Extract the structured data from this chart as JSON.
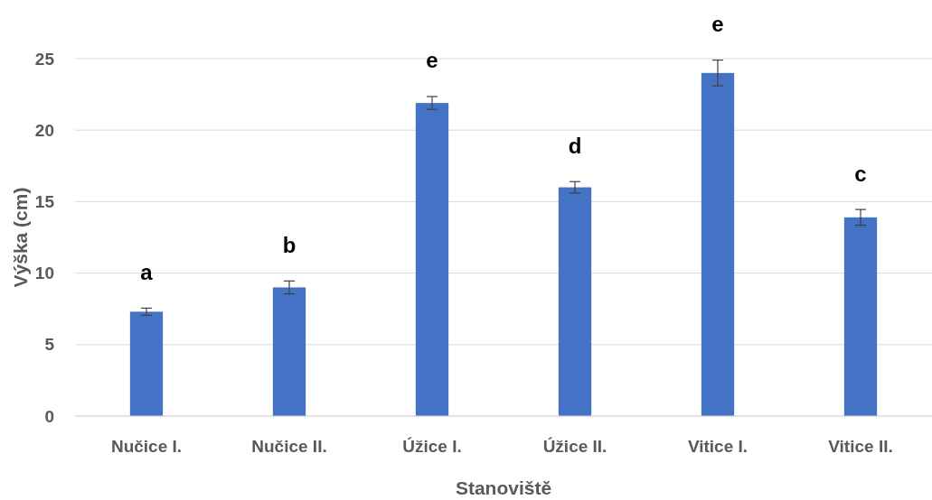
{
  "chart_data": {
    "type": "bar",
    "xlabel": "Stanoviště",
    "ylabel": "Výška (cm)",
    "categories": [
      "Nučice I.",
      "Nučice II.",
      "Úžice I.",
      "Úžice II.",
      "Vitice I.",
      "Vitice II."
    ],
    "values": [
      7.3,
      9.0,
      21.9,
      16.0,
      24.0,
      13.9
    ],
    "errors": [
      0.25,
      0.45,
      0.45,
      0.4,
      0.9,
      0.55
    ],
    "color": "#4472c4",
    "ylim": [
      0,
      25
    ],
    "yticks": [
      0,
      5,
      10,
      15,
      20,
      25
    ],
    "grid": "y",
    "annotations": [
      "a",
      "b",
      "e",
      "d",
      "e",
      "c"
    ]
  }
}
